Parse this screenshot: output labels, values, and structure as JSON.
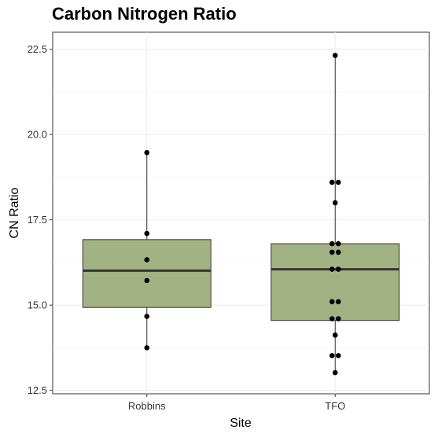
{
  "chart_data": {
    "type": "box",
    "title": "Carbon Nitrogen Ratio",
    "xlabel": "Site",
    "ylabel": "CN Ratio",
    "ylim": [
      12.4,
      23.0
    ],
    "yticks": [
      12.5,
      15.0,
      17.5,
      20.0,
      22.5
    ],
    "ytick_labels": [
      "12.5",
      "15.0",
      "17.5",
      "20.0",
      "22.5"
    ],
    "categories": [
      "Robbins",
      "TFO"
    ],
    "grid": true,
    "box_fill": "#a3b282",
    "boxes": [
      {
        "category": "Robbins",
        "q1": 14.93,
        "median": 16.01,
        "q3": 16.92,
        "whisker_low": 13.75,
        "whisker_high": 19.47,
        "points": [
          19.47,
          17.1,
          16.33,
          15.72,
          14.67,
          13.75
        ]
      },
      {
        "category": "TFO",
        "q1": 14.55,
        "median": 16.05,
        "q3": 16.8,
        "whisker_low": 13.02,
        "whisker_high": 22.32,
        "points": [
          22.32,
          18.6,
          18.6,
          18.0,
          16.8,
          16.8,
          16.55,
          16.55,
          16.05,
          16.05,
          15.1,
          15.1,
          14.6,
          14.6,
          14.12,
          13.52,
          13.52,
          13.02
        ]
      }
    ]
  }
}
